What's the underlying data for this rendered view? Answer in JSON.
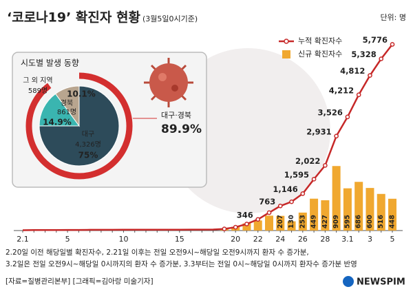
{
  "chart_data": [
    {
      "type": "combo",
      "title": "‘코로나19’ 확진자 현황",
      "subtitle": "(3월5일0시기준)",
      "categories": [
        "2.1",
        null,
        null,
        null,
        "5",
        null,
        null,
        null,
        null,
        "10",
        null,
        null,
        null,
        null,
        "15",
        null,
        null,
        null,
        null,
        "20",
        null,
        "22",
        null,
        "24",
        null,
        "26",
        null,
        "28",
        null,
        "3.1",
        null,
        "3",
        null,
        "5"
      ],
      "series": [
        {
          "name": "누적 확진자수",
          "type": "line",
          "color": "#c62828",
          "values": [
            12,
            15,
            15,
            16,
            18,
            19,
            23,
            24,
            25,
            27,
            28,
            28,
            28,
            28,
            28,
            29,
            30,
            31,
            51,
            104,
            204,
            346,
            556,
            763,
            893,
            1146,
            1595,
            2022,
            2931,
            3526,
            4212,
            4812,
            5328,
            5776
          ],
          "value_labels": [
            null,
            null,
            null,
            null,
            null,
            null,
            null,
            null,
            null,
            null,
            null,
            null,
            null,
            null,
            null,
            null,
            null,
            null,
            null,
            null,
            null,
            "346",
            null,
            "763",
            null,
            "1,146",
            "1,595",
            "2,022",
            "2,931",
            "3,526",
            "4,212",
            "4,812",
            "5,328",
            "5,776"
          ]
        },
        {
          "name": "신규 확진자수",
          "type": "bar",
          "color": "#f0a830",
          "axis": "y2",
          "values": [
            null,
            null,
            null,
            null,
            null,
            null,
            null,
            null,
            null,
            null,
            null,
            null,
            null,
            null,
            null,
            null,
            null,
            null,
            20,
            53,
            100,
            142,
            210,
            207,
            130,
            253,
            449,
            427,
            909,
            595,
            686,
            600,
            516,
            448
          ],
          "value_labels": [
            null,
            null,
            null,
            null,
            null,
            null,
            null,
            null,
            null,
            null,
            null,
            null,
            null,
            null,
            null,
            null,
            null,
            null,
            null,
            null,
            null,
            null,
            null,
            "207",
            "130",
            "253",
            "449",
            "427",
            "909",
            "595",
            "686",
            "600",
            "516",
            "448"
          ]
        }
      ],
      "ylim": [
        0,
        6300
      ],
      "y2lim": [
        0,
        2860
      ],
      "legend": "upper right"
    },
    {
      "type": "pie",
      "title": "시도별 발생 동향",
      "categories": [
        "대구",
        "경북",
        "그 외 지역"
      ],
      "values": [
        75,
        14.9,
        10.1
      ],
      "value_labels": [
        "75%",
        "14.9%",
        "10.1%"
      ],
      "counts": [
        4326,
        861,
        589
      ],
      "count_labels": [
        "4,326명",
        "861명",
        "589명"
      ],
      "colors": [
        "#2d4b5a",
        "#3ab5b0",
        "#b8a58f"
      ],
      "ring": {
        "label": "대구·경북",
        "value": 89.9,
        "value_label": "89.9%",
        "color": "#d32f2f"
      }
    }
  ],
  "unit": "단위: 명",
  "notes": [
    "2.20일 이전 해당일별 확진자수, 2.21일 이후는 전일 오전9시~해당일 오전9시까지 환자 수 증가분,",
    "3.2일은 전일 오전9시~해당일 0시까지의 환자 수 증가분, 3.3부터는 전일 0시~해당일 0시까지 환자수 증가분 반영"
  ],
  "source": "[자료=질병관리본부] [그래픽=김아랑 미술기자]",
  "logo": "NEWSPIM"
}
